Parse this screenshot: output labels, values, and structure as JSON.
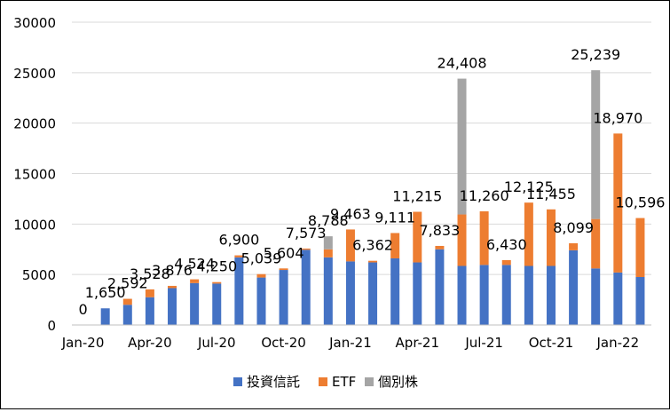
{
  "chart_data": {
    "type": "bar",
    "stacked": true,
    "title": "",
    "xlabel": "",
    "ylabel": "",
    "ylim": [
      0,
      30000
    ],
    "yticks": [
      "0",
      "5000",
      "10000",
      "15000",
      "20000",
      "25000",
      "30000"
    ],
    "grid": "horizontal",
    "legend_position": "bottom",
    "categories": [
      "Jan-20",
      "Feb-20",
      "Mar-20",
      "Apr-20",
      "May-20",
      "Jun-20",
      "Jul-20",
      "Aug-20",
      "Sep-20",
      "Oct-20",
      "Nov-20",
      "Dec-20",
      "Jan-21",
      "Feb-21",
      "Mar-21",
      "Apr-21",
      "May-21",
      "Jun-21",
      "Jul-21",
      "Aug-21",
      "Sep-21",
      "Oct-21",
      "Nov-21",
      "Dec-21",
      "Jan-22",
      "Feb-22"
    ],
    "x_tick_labels": [
      "Jan-20",
      "Apr-20",
      "Jul-20",
      "Oct-20",
      "Jan-21",
      "Apr-21",
      "Jul-21",
      "Oct-21",
      "Jan-22"
    ],
    "series": [
      {
        "name": "投資信託",
        "color": "#4472C4",
        "values": [
          0,
          1650,
          2000,
          2750,
          3650,
          4150,
          4100,
          6700,
          4700,
          5450,
          7450,
          6700,
          6300,
          6200,
          6600,
          6200,
          7500,
          5850,
          5950,
          5950,
          5850,
          5850,
          7400,
          5600,
          5200,
          4750
        ]
      },
      {
        "name": "ETF",
        "color": "#ED7D31",
        "values": [
          0,
          0,
          592,
          778,
          226,
          374,
          150,
          200,
          339,
          154,
          123,
          800,
          3163,
          162,
          2511,
          5015,
          333,
          5100,
          5310,
          480,
          6275,
          5605,
          699,
          4900,
          13770,
          5846
        ]
      },
      {
        "name": "個別株",
        "color": "#A5A5A5",
        "values": [
          0,
          0,
          0,
          0,
          0,
          0,
          0,
          0,
          0,
          0,
          0,
          1288,
          0,
          0,
          0,
          0,
          0,
          13458,
          0,
          0,
          0,
          0,
          0,
          14739,
          0,
          0
        ]
      }
    ],
    "totals": [
      0,
      1650,
      2592,
      3528,
      3876,
      4524,
      4250,
      6900,
      5039,
      5604,
      7573,
      8788,
      9463,
      6362,
      9111,
      11215,
      7833,
      24408,
      11260,
      6430,
      12125,
      11455,
      8099,
      25239,
      18970,
      10596
    ],
    "total_labels": [
      "0",
      "1,650",
      "2,592",
      "3,528",
      "3,876",
      "4,524",
      "4,250",
      "6,900",
      "5,039",
      "5,604",
      "7,573",
      "8,788",
      "9,463",
      "6,362",
      "9,111",
      "11,215",
      "7,833",
      "24,408",
      "11,260",
      "6,430",
      "12,125",
      "11,455",
      "8,099",
      "25,239",
      "18,970",
      "10,596"
    ]
  }
}
